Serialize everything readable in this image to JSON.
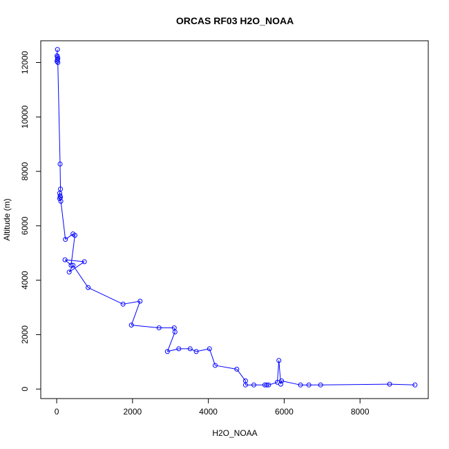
{
  "chart_data": {
    "type": "line",
    "title": "ORCAS RF03 H2O_NOAA",
    "xlabel": "H2O_NOAA",
    "ylabel": "Altitude (m)",
    "xlim": [
      -420,
      9800
    ],
    "ylim": [
      -350,
      12800
    ],
    "xticks": [
      0,
      2000,
      4000,
      6000,
      8000
    ],
    "yticks": [
      0,
      2000,
      4000,
      6000,
      8000,
      10000,
      12000
    ],
    "grid": false,
    "legend": "none",
    "series_color": "#0000ff",
    "marker": "open-circle",
    "x": [
      20,
      10,
      20,
      30,
      20,
      10,
      30,
      90,
      100,
      80,
      90,
      100,
      80,
      110,
      230,
      430,
      480,
      380,
      220,
      730,
      330,
      430,
      830,
      1750,
      2200,
      1970,
      2700,
      3100,
      3120,
      2920,
      3220,
      3520,
      3680,
      4030,
      4180,
      4750,
      4980,
      4980,
      5200,
      5490,
      5540,
      5590,
      5820,
      5860,
      5910,
      5930,
      6430,
      6650,
      6960,
      8780,
      9450
    ],
    "y": [
      12480,
      12250,
      12200,
      12150,
      12100,
      12050,
      12000,
      8270,
      7350,
      7200,
      7100,
      7050,
      7000,
      6900,
      5500,
      5700,
      5650,
      4550,
      4750,
      4680,
      4300,
      4550,
      3730,
      3120,
      3230,
      2350,
      2250,
      2250,
      2100,
      1380,
      1480,
      1480,
      1380,
      1480,
      870,
      730,
      300,
      150,
      150,
      150,
      150,
      150,
      250,
      1050,
      180,
      300,
      150,
      150,
      150,
      180,
      150
    ]
  }
}
